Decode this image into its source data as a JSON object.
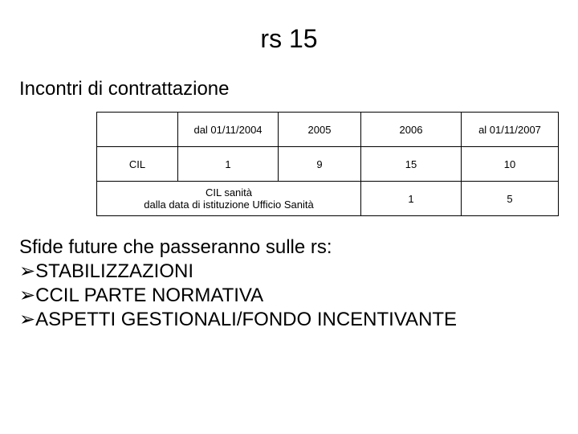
{
  "title": "rs 15",
  "subtitle": "Incontri di contrattazione",
  "table": {
    "columns": [
      "",
      "dal 01/11/2004",
      "2005",
      "2006",
      "al 01/11/2007"
    ],
    "row0_label": "CIL",
    "row0_values": [
      "1",
      "9",
      "15",
      "10"
    ],
    "row1_merged_label": "CIL sanità\ndalla data di istituzione Ufficio Sanità",
    "row1_values": [
      "1",
      "5"
    ],
    "border_color": "#000000",
    "background_color": "#ffffff",
    "font_size_pt": 10
  },
  "body": {
    "intro": "Sfide future che passeranno sulle rs:",
    "bullets": [
      "STABILIZZAZIONI",
      "CCIL PARTE NORMATIVA",
      "ASPETTI GESTIONALI/FONDO INCENTIVANTE"
    ],
    "bullet_glyph": "➢"
  },
  "colors": {
    "text": "#000000",
    "background": "#ffffff"
  }
}
